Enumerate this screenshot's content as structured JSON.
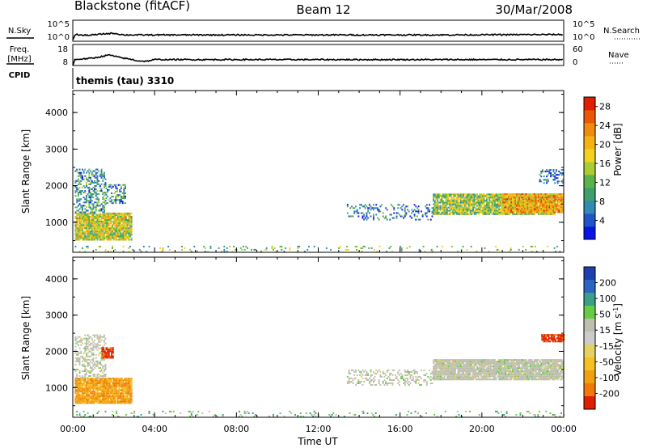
{
  "header": {
    "title_left": "Blackstone (fitACF)",
    "title_center": "Beam 12",
    "title_right": "30/Mar/2008"
  },
  "strip_nsky": {
    "left_label": "N.Sky",
    "right_label": "N.Search",
    "left_ticks": [
      "10^5",
      "10^0"
    ],
    "right_ticks": [
      "10^5",
      "10^0"
    ]
  },
  "strip_freq": {
    "left_label_1": "Freq.",
    "left_label_2": "[MHz]",
    "right_label": "Nave",
    "left_ticks": [
      "18",
      "8"
    ],
    "right_ticks": [
      "60",
      "0"
    ]
  },
  "cpid": {
    "label": "CPID",
    "value": "themis (tau) 3310"
  },
  "colors": {
    "power_scale": [
      "#0a14e6",
      "#1f55c8",
      "#2f8ab4",
      "#3f9e6e",
      "#5ab24a",
      "#a8cc32",
      "#f2d21e",
      "#f5b213",
      "#f08c0c",
      "#ea5a06",
      "#e01e00"
    ],
    "velocity_scale": [
      "#1f3fb0",
      "#2a66c0",
      "#3a9e88",
      "#66cc44",
      "#bfbfb0",
      "#cccccc",
      "#e6d060",
      "#f5c020",
      "#f0a010",
      "#f07a08",
      "#e01e00"
    ]
  },
  "chart_data": [
    {
      "type": "heatmap",
      "panel": "power",
      "xlabel": "",
      "ylabel": "Slant Range [km]",
      "xlim": [
        0,
        24
      ],
      "ylim": [
        180,
        4600
      ],
      "x_ticks": [
        "00:00",
        "04:00",
        "08:00",
        "12:00",
        "16:00",
        "20:00",
        "00:00"
      ],
      "y_ticks": [
        1000,
        2000,
        3000,
        4000
      ],
      "colorbar": {
        "label": "Power [dB]",
        "ticks": [
          4,
          8,
          12,
          16,
          20,
          24,
          28
        ],
        "range": [
          0,
          30
        ]
      },
      "regions": [
        {
          "x": [
            0.1,
            2.9
          ],
          "y": [
            500,
            1250
          ],
          "value": 16,
          "density": 0.95
        },
        {
          "x": [
            0.1,
            1.6
          ],
          "y": [
            1250,
            2450
          ],
          "value": 8,
          "density": 0.45
        },
        {
          "x": [
            1.6,
            2.6
          ],
          "y": [
            1500,
            2000
          ],
          "value": 8,
          "density": 0.45
        },
        {
          "x": [
            0.1,
            24.0
          ],
          "y": [
            180,
            320
          ],
          "value": 12,
          "density": 0.12
        },
        {
          "x": [
            13.4,
            17.6
          ],
          "y": [
            1050,
            1500
          ],
          "value": 6,
          "density": 0.25
        },
        {
          "x": [
            17.6,
            23.6
          ],
          "y": [
            1200,
            1750
          ],
          "value": 14,
          "density": 0.9
        },
        {
          "x": [
            21.0,
            24.0
          ],
          "y": [
            1250,
            1750
          ],
          "value": 22,
          "density": 0.95
        },
        {
          "x": [
            22.8,
            24.0
          ],
          "y": [
            2050,
            2450
          ],
          "value": 6,
          "density": 0.45
        }
      ]
    },
    {
      "type": "heatmap",
      "panel": "velocity",
      "xlabel": "Time UT",
      "ylabel": "Slant Range [km]",
      "xlim": [
        0,
        24
      ],
      "ylim": [
        180,
        4600
      ],
      "x_ticks": [
        "00:00",
        "04:00",
        "08:00",
        "12:00",
        "16:00",
        "20:00",
        "00:00"
      ],
      "y_ticks": [
        1000,
        2000,
        3000,
        4000
      ],
      "colorbar": {
        "label": "Velocity [m s^-1]",
        "ticks": [
          "200",
          "100",
          "50",
          "15",
          "-15",
          "-50",
          "-100",
          "-200"
        ]
      },
      "regions": [
        {
          "x": [
            0.1,
            2.9
          ],
          "y": [
            550,
            1250
          ],
          "value": -60,
          "density": 0.95
        },
        {
          "x": [
            0.1,
            1.6
          ],
          "y": [
            1250,
            2450
          ],
          "value": -10,
          "density": 0.45
        },
        {
          "x": [
            1.4,
            2.0
          ],
          "y": [
            1800,
            2100
          ],
          "value": -200,
          "density": 0.8
        },
        {
          "x": [
            0.1,
            24.0
          ],
          "y": [
            180,
            320
          ],
          "value": 40,
          "density": 0.12
        },
        {
          "x": [
            13.4,
            17.6
          ],
          "y": [
            1050,
            1500
          ],
          "value": 0,
          "density": 0.3
        },
        {
          "x": [
            17.6,
            24.0
          ],
          "y": [
            1200,
            1750
          ],
          "value": 0,
          "density": 0.92
        },
        {
          "x": [
            22.9,
            24.0
          ],
          "y": [
            2250,
            2450
          ],
          "value": -200,
          "density": 0.9
        }
      ]
    },
    {
      "type": "line",
      "panel": "nsky",
      "x": [
        0.0,
        0.1,
        0.2,
        0.5,
        1.0,
        1.5,
        2.0,
        2.5,
        3.0,
        6.0,
        12.0,
        18.0,
        24.0
      ],
      "y_fraction": [
        0.05,
        0.3,
        0.32,
        0.28,
        0.3,
        0.35,
        0.38,
        0.3,
        0.3,
        0.3,
        0.3,
        0.3,
        0.32
      ]
    },
    {
      "type": "line",
      "panel": "freq",
      "x": [
        0.0,
        0.1,
        0.3,
        1.0,
        1.5,
        1.8,
        2.2,
        2.8,
        3.2,
        3.6,
        4.0,
        12.0,
        24.0
      ],
      "y_fraction": [
        0.0,
        0.28,
        0.3,
        0.35,
        0.45,
        0.5,
        0.4,
        0.3,
        0.22,
        0.2,
        0.28,
        0.28,
        0.28
      ]
    }
  ]
}
